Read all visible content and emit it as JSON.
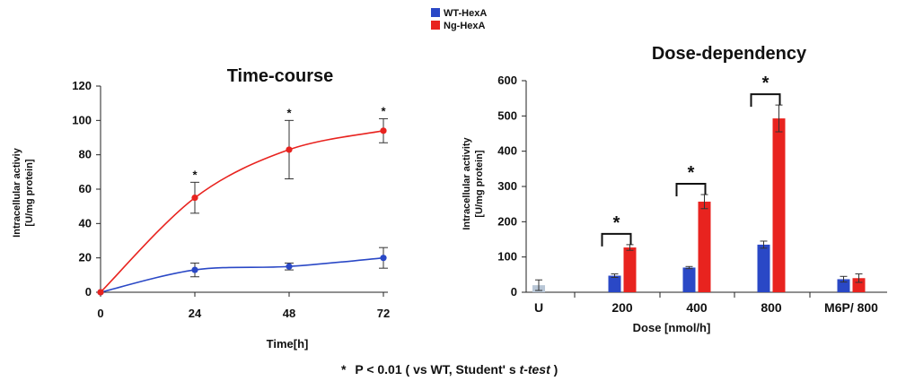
{
  "legend": {
    "items": [
      {
        "label": "WT-HexA",
        "color": "#2a48c6"
      },
      {
        "label": "Ng-HexA",
        "color": "#e8231f"
      }
    ]
  },
  "footnote": {
    "star": "*",
    "text_before": "P < 0.01 ( vs WT, Student' s ",
    "italic": "t-test",
    "text_after": " )"
  },
  "chart_data": [
    {
      "type": "line",
      "title": "Time-course",
      "xlabel": "Time[h]",
      "ylabel_line1": "Intracellular activiy",
      "ylabel_line2": "[U/mg protein]",
      "x": [
        0,
        24,
        48,
        72
      ],
      "xticks": [
        "0",
        "24",
        "48",
        "72"
      ],
      "ylim": [
        0,
        120
      ],
      "yticks": [
        "0",
        "20",
        "40",
        "60",
        "80",
        "100",
        "120"
      ],
      "series": [
        {
          "name": "WT-HexA",
          "color": "#2a48c6",
          "values": [
            0,
            13,
            15,
            20
          ],
          "errors": [
            0,
            4,
            2,
            6
          ]
        },
        {
          "name": "Ng-HexA",
          "color": "#e8231f",
          "values": [
            0,
            55,
            83,
            94
          ],
          "errors": [
            0,
            9,
            17,
            7
          ]
        }
      ],
      "significance": [
        {
          "x": 24,
          "label": "*"
        },
        {
          "x": 48,
          "label": "*"
        },
        {
          "x": 72,
          "label": "*"
        }
      ]
    },
    {
      "type": "bar",
      "title": "Dose-dependency",
      "xlabel": "Dose [nmol/h]",
      "ylabel_line1": "Intracellular activity",
      "ylabel_line2": "[U/mg protein]",
      "categories": [
        "U",
        "200",
        "400",
        "800",
        "M6P/ 800"
      ],
      "ylim": [
        0,
        600
      ],
      "yticks": [
        "0",
        "100",
        "200",
        "300",
        "400",
        "500",
        "600"
      ],
      "untreated": {
        "value": 20,
        "error": 15,
        "color": "#b8c6d6"
      },
      "series": [
        {
          "name": "WT-HexA",
          "color": "#2a48c6",
          "values": [
            null,
            47,
            70,
            135,
            37
          ],
          "errors": [
            null,
            5,
            3,
            10,
            8
          ]
        },
        {
          "name": "Ng-HexA",
          "color": "#e8231f",
          "values": [
            null,
            127,
            257,
            493,
            40
          ],
          "errors": [
            null,
            8,
            20,
            38,
            12
          ]
        }
      ],
      "significance": [
        {
          "category": "200",
          "label": "*"
        },
        {
          "category": "400",
          "label": "*"
        },
        {
          "category": "800",
          "label": "*"
        }
      ]
    }
  ]
}
